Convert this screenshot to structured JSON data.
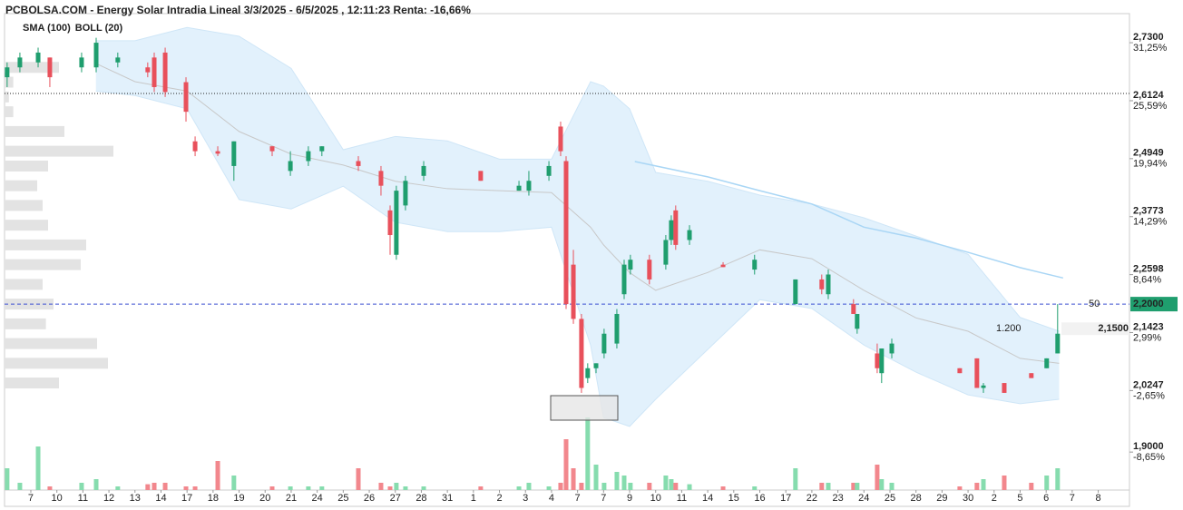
{
  "chart_data": {
    "type": "candlestick",
    "title": "PCBOLSA.COM - Energy Solar Intradia Lineal 3/3/2025 - 6/5/2025 , 12:11:23 Renta: -16,66%",
    "legend": [
      {
        "name": "SMA (100)",
        "color": "#a9d6f5"
      },
      {
        "name": "BOLL (20)",
        "color": "#c8c8c8"
      }
    ],
    "up_color": "#1f9e6e",
    "down_color": "#e8505b",
    "volume_up_color": "#86dcae",
    "volume_down_color": "#f2878d",
    "categories": [
      "7",
      "10",
      "11",
      "12",
      "13",
      "14",
      "17",
      "18",
      "19",
      "20",
      "21",
      "24",
      "25",
      "26",
      "27",
      "28",
      "31",
      "1",
      "2",
      "3",
      "4",
      "7",
      "7",
      "9",
      "10",
      "11",
      "14",
      "15",
      "16",
      "17",
      "22",
      "23",
      "24",
      "25",
      "28",
      "29",
      "30",
      "2",
      "5",
      "6",
      "7",
      "8"
    ],
    "xlim": [
      -1.01,
      42.2
    ],
    "ylim": [
      1.823,
      2.789
    ],
    "yticks": [
      {
        "value": 2.73,
        "label": "2,7300",
        "change": "31,25%"
      },
      {
        "value": 2.6124,
        "label": "2,6124",
        "change": "25,59%"
      },
      {
        "value": 2.4949,
        "label": "2,4949",
        "change": "19,94%"
      },
      {
        "value": 2.3773,
        "label": "2,3773",
        "change": "14,29%"
      },
      {
        "value": 2.2598,
        "label": "2,2598",
        "change": "8,64%"
      },
      {
        "value": 2.1423,
        "label": "2,1423",
        "change": "2,99%"
      },
      {
        "value": 2.0247,
        "label": "2,0247",
        "change": "-2,65%"
      },
      {
        "value": 1.9,
        "label": "1,9000",
        "change": "-8,65%"
      }
    ],
    "reference_line": 2.627,
    "last_price": {
      "value": 2.2,
      "label": "2,2000",
      "size": "50"
    },
    "bid": {
      "value": 2.15,
      "label": "2,1500",
      "size": "1.200"
    },
    "candles": {
      "x": [
        -0.91,
        -0.42,
        0.28,
        0.73,
        1.95,
        2.51,
        3.34,
        4.49,
        4.74,
        5.16,
        5.96,
        6.31,
        7.18,
        7.8,
        9.27,
        9.97,
        10.66,
        11.18,
        12.58,
        13.45,
        13.8,
        14.04,
        14.39,
        15.09,
        17.28,
        18.75,
        19.13,
        19.9,
        20.35,
        20.56,
        20.84,
        21.15,
        21.39,
        21.71,
        22.02,
        22.51,
        22.79,
        23.03,
        23.76,
        24.39,
        24.6,
        24.77,
        25.3,
        26.59,
        27.8,
        29.37,
        30.38,
        30.63,
        31.6,
        31.74,
        32.51,
        32.68,
        33.07,
        35.68,
        36.34,
        36.59,
        37.39,
        38.43,
        39.02,
        39.44
      ],
      "open": [
        2.66,
        2.68,
        2.69,
        2.7,
        2.68,
        2.68,
        2.69,
        2.68,
        2.7,
        2.71,
        2.65,
        2.53,
        2.51,
        2.48,
        2.52,
        2.47,
        2.49,
        2.51,
        2.49,
        2.47,
        2.39,
        2.3,
        2.4,
        2.46,
        2.47,
        2.43,
        2.43,
        2.46,
        2.56,
        2.49,
        2.28,
        2.17,
        2.05,
        2.07,
        2.1,
        2.12,
        2.22,
        2.27,
        2.29,
        2.28,
        2.33,
        2.39,
        2.33,
        2.28,
        2.27,
        2.2,
        2.25,
        2.22,
        2.2,
        2.15,
        2.1,
        2.06,
        2.1,
        2.07,
        2.09,
        2.03,
        2.04,
        2.06,
        2.07,
        2.1
      ],
      "high": [
        2.69,
        2.71,
        2.72,
        2.7,
        2.71,
        2.74,
        2.71,
        2.69,
        2.71,
        2.72,
        2.66,
        2.54,
        2.52,
        2.53,
        2.52,
        2.51,
        2.52,
        2.52,
        2.5,
        2.48,
        2.4,
        2.44,
        2.46,
        2.49,
        2.47,
        2.45,
        2.47,
        2.49,
        2.57,
        2.5,
        2.31,
        2.18,
        2.08,
        2.08,
        2.15,
        2.19,
        2.29,
        2.3,
        2.3,
        2.34,
        2.38,
        2.4,
        2.36,
        2.285,
        2.3,
        2.25,
        2.26,
        2.27,
        2.21,
        2.18,
        2.12,
        2.11,
        2.13,
        2.07,
        2.09,
        2.04,
        2.04,
        2.06,
        2.09,
        2.2
      ],
      "low": [
        2.64,
        2.67,
        2.68,
        2.64,
        2.67,
        2.67,
        2.68,
        2.66,
        2.63,
        2.62,
        2.57,
        2.5,
        2.5,
        2.45,
        2.5,
        2.46,
        2.48,
        2.5,
        2.47,
        2.42,
        2.3,
        2.29,
        2.39,
        2.45,
        2.45,
        2.43,
        2.42,
        2.45,
        2.5,
        2.19,
        2.16,
        2.02,
        2.04,
        2.06,
        2.09,
        2.11,
        2.21,
        2.26,
        2.24,
        2.27,
        2.32,
        2.31,
        2.32,
        2.275,
        2.26,
        2.2,
        2.22,
        2.21,
        2.18,
        2.14,
        2.06,
        2.04,
        2.09,
        2.06,
        2.03,
        2.02,
        2.02,
        2.05,
        2.07,
        2.1
      ],
      "close": [
        2.68,
        2.7,
        2.71,
        2.66,
        2.7,
        2.73,
        2.7,
        2.67,
        2.64,
        2.63,
        2.59,
        2.51,
        2.505,
        2.53,
        2.51,
        2.49,
        2.51,
        2.52,
        2.48,
        2.44,
        2.34,
        2.43,
        2.45,
        2.48,
        2.45,
        2.44,
        2.45,
        2.48,
        2.51,
        2.2,
        2.17,
        2.03,
        2.07,
        2.08,
        2.14,
        2.18,
        2.28,
        2.29,
        2.25,
        2.33,
        2.37,
        2.32,
        2.35,
        2.275,
        2.29,
        2.25,
        2.23,
        2.26,
        2.18,
        2.18,
        2.07,
        2.11,
        2.12,
        2.06,
        2.03,
        2.035,
        2.02,
        2.05,
        2.09,
        2.14
      ],
      "volume": [
        30,
        10,
        60,
        5,
        10,
        15,
        5,
        8,
        10,
        10,
        5,
        5,
        40,
        20,
        5,
        5,
        5,
        5,
        30,
        10,
        5,
        10,
        5,
        5,
        5,
        5,
        10,
        5,
        10,
        70,
        30,
        10,
        100,
        35,
        10,
        25,
        20,
        10,
        10,
        20,
        15,
        10,
        8,
        5,
        5,
        30,
        10,
        10,
        10,
        10,
        35,
        15,
        10,
        5,
        10,
        15,
        20,
        10,
        20,
        30
      ]
    },
    "volume_lim": [
      0,
      100
    ],
    "bollinger": {
      "x": [
        2.5,
        4,
        6,
        8,
        10,
        12,
        14,
        16,
        18,
        20,
        21.5,
        22,
        23,
        24,
        26,
        28,
        30,
        32,
        34,
        36,
        38,
        39.5
      ],
      "upper": [
        2.734,
        2.734,
        2.761,
        2.743,
        2.678,
        2.513,
        2.54,
        2.531,
        2.494,
        2.494,
        2.651,
        2.642,
        2.596,
        2.467,
        2.449,
        2.421,
        2.403,
        2.375,
        2.338,
        2.301,
        2.173,
        2.145
      ],
      "middle": [
        2.688,
        2.651,
        2.632,
        2.55,
        2.504,
        2.482,
        2.449,
        2.434,
        2.43,
        2.426,
        2.356,
        2.32,
        2.264,
        2.228,
        2.264,
        2.31,
        2.292,
        2.228,
        2.172,
        2.145,
        2.09,
        2.08
      ],
      "lower": [
        2.632,
        2.623,
        2.596,
        2.412,
        2.393,
        2.439,
        2.366,
        2.347,
        2.347,
        2.356,
        2.117,
        1.97,
        1.952,
        2.007,
        2.108,
        2.209,
        2.191,
        2.117,
        2.062,
        2.016,
        1.998,
        2.007
      ]
    },
    "sma": {
      "x": [
        23.2,
        26,
        28,
        30,
        32,
        34,
        36,
        38,
        39.65
      ],
      "values": [
        2.489,
        2.458,
        2.43,
        2.403,
        2.356,
        2.334,
        2.305,
        2.274,
        2.253
      ]
    },
    "volume_profile": {
      "prices": [
        2.68,
        2.65,
        2.62,
        2.59,
        2.55,
        2.51,
        2.48,
        2.44,
        2.4,
        2.36,
        2.32,
        2.28,
        2.24,
        2.2,
        2.16,
        2.12,
        2.08,
        2.04
      ],
      "values": [
        50,
        8,
        4,
        8,
        55,
        100,
        40,
        30,
        35,
        40,
        75,
        70,
        35,
        45,
        38,
        85,
        95,
        50
      ]
    },
    "profile_lim": [
      0,
      100
    ]
  }
}
